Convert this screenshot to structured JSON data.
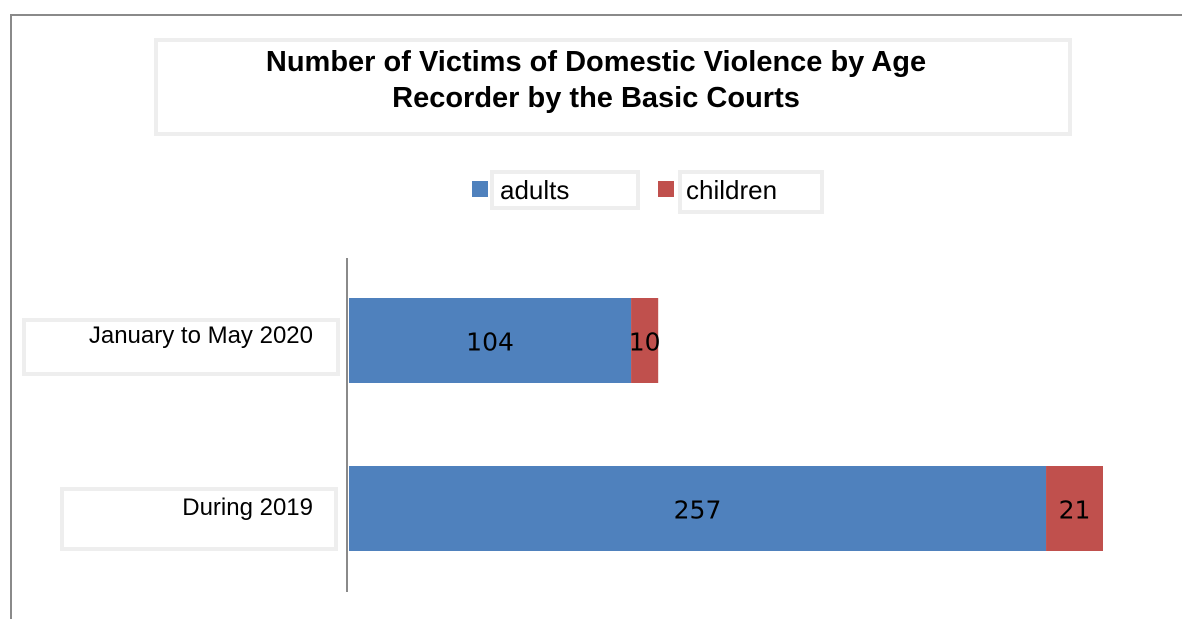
{
  "chart_data": {
    "type": "bar",
    "orientation": "horizontal",
    "stacked": true,
    "title": "Number of Victims of Domestic Violence by Age\nRecorder by the Basic Courts",
    "categories": [
      "January to May 2020",
      "During 2019"
    ],
    "series": [
      {
        "name": "adults",
        "values": [
          104,
          257
        ],
        "color": "#4f81bd"
      },
      {
        "name": "children",
        "values": [
          10,
          21
        ],
        "color": "#c0504d"
      }
    ],
    "xlim": [
      0,
      278
    ],
    "grid": false,
    "legend_position": "top"
  }
}
